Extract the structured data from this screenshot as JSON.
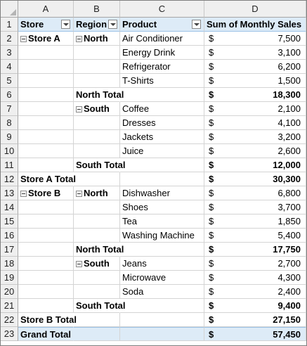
{
  "columns": [
    "A",
    "B",
    "C",
    "D"
  ],
  "headers": {
    "store": "Store",
    "region": "Region",
    "product": "Product",
    "sales": "Sum of Monthly Sales"
  },
  "rows": [
    {
      "num": "1"
    },
    {
      "num": "2",
      "store": "Store A",
      "store_collapse": true,
      "region": "North",
      "region_collapse": true,
      "product": "Air Conditioner",
      "currency": "$",
      "value": "7,500"
    },
    {
      "num": "3",
      "product": "Energy Drink",
      "currency": "$",
      "value": "3,100"
    },
    {
      "num": "4",
      "product": "Refrigerator",
      "currency": "$",
      "value": "6,200"
    },
    {
      "num": "5",
      "product": "T-Shirts",
      "currency": "$",
      "value": "1,500"
    },
    {
      "num": "6",
      "region": "North Total",
      "currency": "$",
      "value": "18,300",
      "kind": "region-total"
    },
    {
      "num": "7",
      "region": "South",
      "region_collapse": true,
      "product": "Coffee",
      "currency": "$",
      "value": "2,100"
    },
    {
      "num": "8",
      "product": "Dresses",
      "currency": "$",
      "value": "4,100"
    },
    {
      "num": "9",
      "product": "Jackets",
      "currency": "$",
      "value": "3,200"
    },
    {
      "num": "10",
      "product": "Juice",
      "currency": "$",
      "value": "2,600"
    },
    {
      "num": "11",
      "region": "South Total",
      "currency": "$",
      "value": "12,000",
      "kind": "region-total"
    },
    {
      "num": "12",
      "store": "Store A Total",
      "currency": "$",
      "value": "30,300",
      "kind": "store-total"
    },
    {
      "num": "13",
      "store": "Store B",
      "store_collapse": true,
      "region": "North",
      "region_collapse": true,
      "product": "Dishwasher",
      "currency": "$",
      "value": "6,800"
    },
    {
      "num": "14",
      "product": "Shoes",
      "currency": "$",
      "value": "3,700"
    },
    {
      "num": "15",
      "product": "Tea",
      "currency": "$",
      "value": "1,850"
    },
    {
      "num": "16",
      "product": "Washing Machine",
      "currency": "$",
      "value": "5,400"
    },
    {
      "num": "17",
      "region": "North Total",
      "currency": "$",
      "value": "17,750",
      "kind": "region-total"
    },
    {
      "num": "18",
      "region": "South",
      "region_collapse": true,
      "product": "Jeans",
      "currency": "$",
      "value": "2,700"
    },
    {
      "num": "19",
      "product": "Microwave",
      "currency": "$",
      "value": "4,300"
    },
    {
      "num": "20",
      "product": "Soda",
      "currency": "$",
      "value": "2,400"
    },
    {
      "num": "21",
      "region": "South Total",
      "currency": "$",
      "value": "9,400",
      "kind": "region-total"
    },
    {
      "num": "22",
      "store": "Store B Total",
      "currency": "$",
      "value": "27,150",
      "kind": "store-total"
    },
    {
      "num": "23",
      "store": "Grand Total",
      "currency": "$",
      "value": "57,450",
      "kind": "grand-total"
    }
  ],
  "colors": {
    "header_fill": "#ddebf7",
    "header_border": "#9bc2e6",
    "chrome": "#efefef"
  },
  "icons": {
    "filter": "filter-dropdown-icon",
    "collapse": "collapse-minus-icon",
    "select_all": "select-all-triangle-icon"
  }
}
